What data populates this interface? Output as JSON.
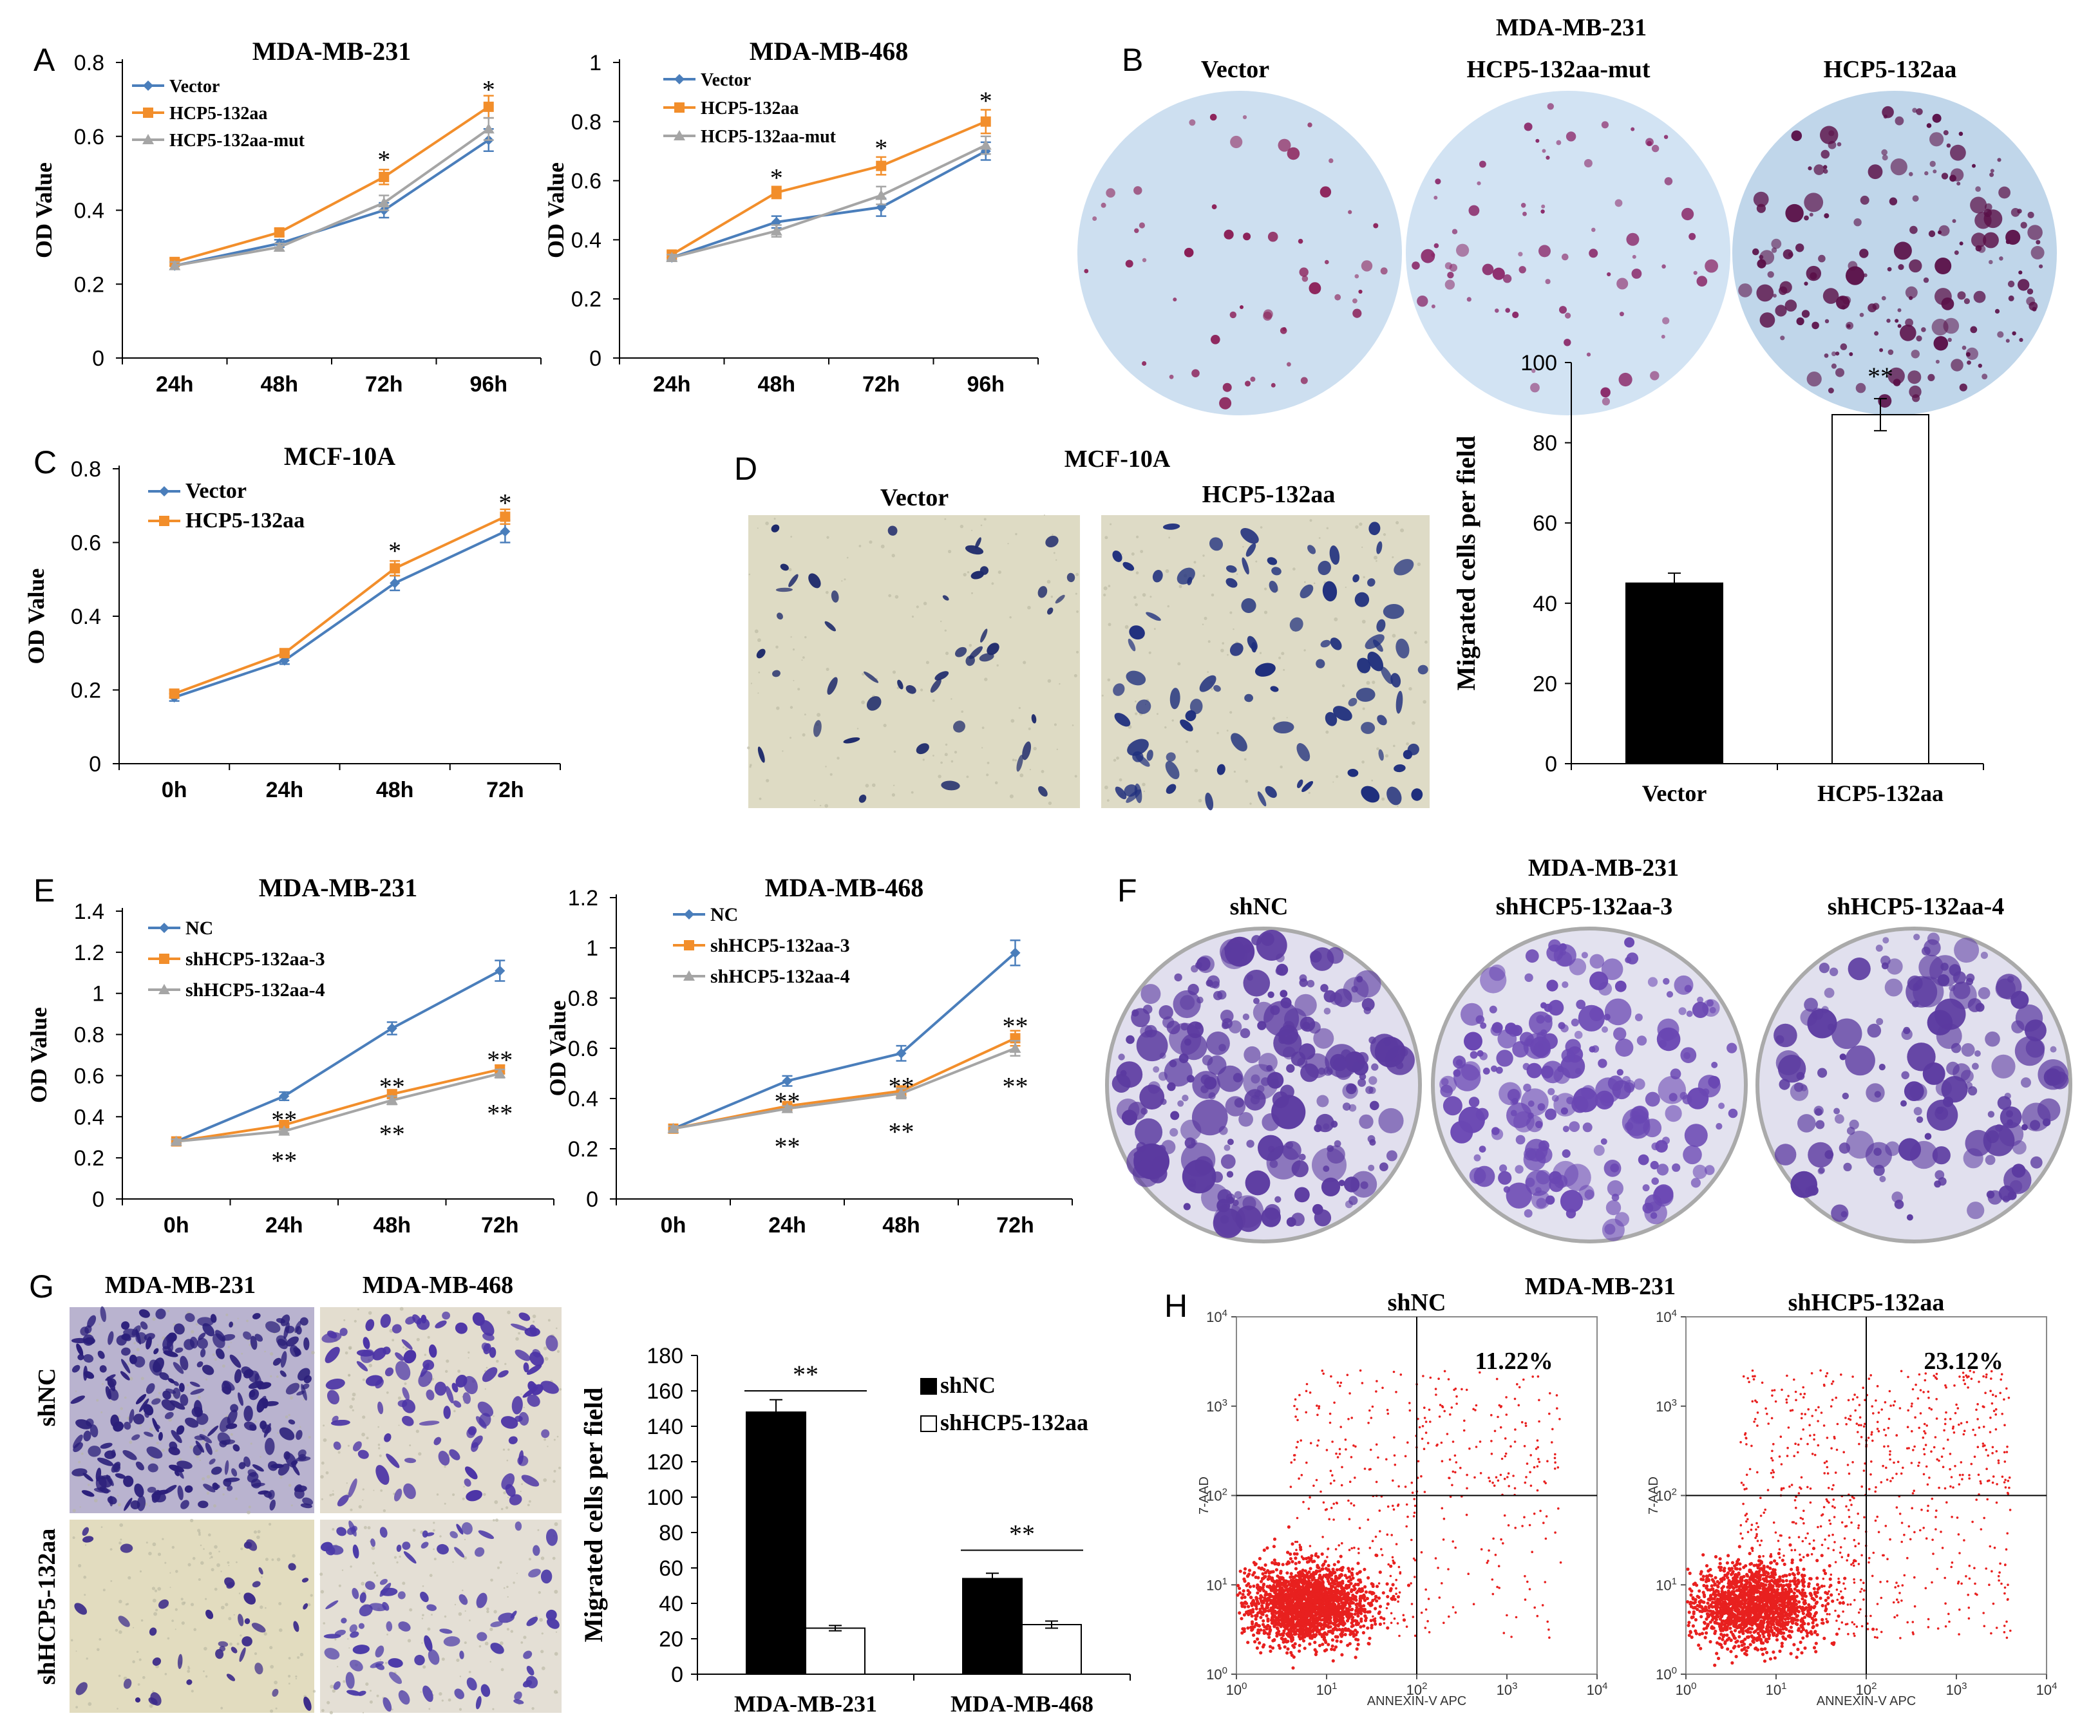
{
  "panel_letters": {
    "a": "A",
    "b": "B",
    "c": "C",
    "d": "D",
    "e": "E",
    "f": "F",
    "g": "G",
    "h": "H"
  },
  "colors": {
    "blue": "#4a7ebb",
    "orange": "#f28e2b",
    "gray": "#a5a5a5",
    "red": "#e8201f",
    "black": "#000000",
    "dish_blue": "#c9dcef",
    "crystal_violet": "#5b3aa0"
  },
  "panel_b": {
    "title": "MDA-MB-231",
    "labels": [
      "Vector",
      "HCP5-132aa-mut",
      "HCP5-132aa"
    ]
  },
  "panel_d_images": {
    "title": "MCF-10A",
    "labels": [
      "Vector",
      "HCP5-132aa"
    ]
  },
  "panel_f": {
    "title": "MDA-MB-231",
    "labels": [
      "shNC",
      "shHCP5-132aa-3",
      "shHCP5-132aa-4"
    ]
  },
  "panel_g_images": {
    "col_labels": [
      "MDA-MB-231",
      "MDA-MB-468"
    ],
    "row_labels": [
      "shNC",
      "shHCP5-132aa"
    ]
  },
  "chart_data": [
    {
      "id": "A1",
      "type": "line",
      "title": "MDA-MB-231",
      "xlabel": "",
      "ylabel": "OD Value",
      "categories": [
        "24h",
        "48h",
        "72h",
        "96h"
      ],
      "ylim": [
        0,
        0.8
      ],
      "yticks": [
        0,
        0.2,
        0.4,
        0.6,
        0.8
      ],
      "ytick_labels": [
        "0",
        "0.2",
        "0.4",
        "0.6",
        "0.8"
      ],
      "series": [
        {
          "name": "Vector",
          "values": [
            0.25,
            0.31,
            0.4,
            0.59
          ],
          "errors": [
            0.01,
            0.01,
            0.02,
            0.03
          ],
          "color": "#4a7ebb",
          "marker": "diamond"
        },
        {
          "name": "HCP5-132aa",
          "values": [
            0.26,
            0.34,
            0.49,
            0.68
          ],
          "errors": [
            0.01,
            0.01,
            0.02,
            0.03
          ],
          "color": "#f28e2b",
          "marker": "square"
        },
        {
          "name": "HCP5-132aa-mut",
          "values": [
            0.25,
            0.3,
            0.42,
            0.62
          ],
          "errors": [
            0.01,
            0.01,
            0.02,
            0.03
          ],
          "color": "#a5a5a5",
          "marker": "triangle"
        }
      ],
      "annotations": [
        {
          "category": "72h",
          "value": 0.545,
          "text": "*"
        },
        {
          "category": "96h",
          "value": 0.735,
          "text": "*"
        }
      ]
    },
    {
      "id": "A2",
      "type": "line",
      "title": "MDA-MB-468",
      "xlabel": "",
      "ylabel": "OD Value",
      "categories": [
        "24h",
        "48h",
        "72h",
        "96h"
      ],
      "ylim": [
        0,
        1
      ],
      "yticks": [
        0,
        0.2,
        0.4,
        0.6,
        0.8,
        1
      ],
      "ytick_labels": [
        "0",
        "0.2",
        "0.4",
        "0.6",
        "0.8",
        "1"
      ],
      "series": [
        {
          "name": "Vector",
          "values": [
            0.34,
            0.46,
            0.51,
            0.7
          ],
          "errors": [
            0.01,
            0.02,
            0.03,
            0.03
          ],
          "color": "#4a7ebb",
          "marker": "diamond"
        },
        {
          "name": "HCP5-132aa",
          "values": [
            0.35,
            0.56,
            0.65,
            0.8
          ],
          "errors": [
            0.01,
            0.02,
            0.03,
            0.04
          ],
          "color": "#f28e2b",
          "marker": "square"
        },
        {
          "name": "HCP5-132aa-mut",
          "values": [
            0.34,
            0.43,
            0.55,
            0.72
          ],
          "errors": [
            0.01,
            0.02,
            0.03,
            0.03
          ],
          "color": "#a5a5a5",
          "marker": "triangle"
        }
      ],
      "annotations": [
        {
          "category": "48h",
          "value": 0.62,
          "text": "*"
        },
        {
          "category": "72h",
          "value": 0.72,
          "text": "*"
        },
        {
          "category": "96h",
          "value": 0.88,
          "text": "*"
        }
      ]
    },
    {
      "id": "C",
      "type": "line",
      "title": "MCF-10A",
      "xlabel": "",
      "ylabel": "OD Value",
      "categories": [
        "0h",
        "24h",
        "48h",
        "72h"
      ],
      "ylim": [
        0,
        0.8
      ],
      "yticks": [
        0,
        0.2,
        0.4,
        0.6,
        0.8
      ],
      "ytick_labels": [
        "0",
        "0.2",
        "0.4",
        "0.6",
        "0.8"
      ],
      "series": [
        {
          "name": "Vector",
          "values": [
            0.18,
            0.28,
            0.49,
            0.63
          ],
          "errors": [
            0.01,
            0.01,
            0.02,
            0.03
          ],
          "color": "#4a7ebb",
          "marker": "diamond"
        },
        {
          "name": "HCP5-132aa",
          "values": [
            0.19,
            0.3,
            0.53,
            0.67
          ],
          "errors": [
            0.01,
            0.01,
            0.02,
            0.02
          ],
          "color": "#f28e2b",
          "marker": "square"
        }
      ],
      "annotations": [
        {
          "category": "48h",
          "value": 0.585,
          "text": "*"
        },
        {
          "category": "72h",
          "value": 0.715,
          "text": "*"
        }
      ]
    },
    {
      "id": "D",
      "type": "bar",
      "title": "",
      "xlabel": "",
      "ylabel": "Migrated cells per field",
      "categories": [
        "Vector",
        "HCP5-132aa"
      ],
      "ylim": [
        0,
        100
      ],
      "yticks": [
        0,
        20,
        40,
        60,
        80,
        100
      ],
      "ytick_labels": [
        "0",
        "20",
        "40",
        "60",
        "80",
        "100"
      ],
      "series": [
        {
          "name": "",
          "values": [
            45,
            87
          ],
          "errors": [
            2.5,
            4
          ],
          "fills": [
            "#000000",
            "#ffffff"
          ]
        }
      ],
      "annotations": [
        {
          "category": "HCP5-132aa",
          "value": 96,
          "text": "**"
        }
      ]
    },
    {
      "id": "E1",
      "type": "line",
      "title": "MDA-MB-231",
      "xlabel": "",
      "ylabel": "OD Value",
      "categories": [
        "0h",
        "24h",
        "48h",
        "72h"
      ],
      "ylim": [
        0,
        1.4
      ],
      "yticks": [
        0,
        0.2,
        0.4,
        0.6,
        0.8,
        1,
        1.2,
        1.4
      ],
      "ytick_labels": [
        "0",
        "0.2",
        "0.4",
        "0.6",
        "0.8",
        "1",
        "1.2",
        "1.4"
      ],
      "series": [
        {
          "name": "NC",
          "values": [
            0.28,
            0.5,
            0.83,
            1.11
          ],
          "errors": [
            0.01,
            0.02,
            0.03,
            0.05
          ],
          "color": "#4a7ebb",
          "marker": "diamond"
        },
        {
          "name": "shHCP5-132aa-3",
          "values": [
            0.28,
            0.36,
            0.51,
            0.63
          ],
          "errors": [
            0.01,
            0.01,
            0.02,
            0.02
          ],
          "color": "#f28e2b",
          "marker": "square"
        },
        {
          "name": "shHCP5-132aa-4",
          "values": [
            0.28,
            0.33,
            0.48,
            0.61
          ],
          "errors": [
            0.01,
            0.01,
            0.02,
            0.02
          ],
          "color": "#a5a5a5",
          "marker": "triangle"
        }
      ],
      "annotations": [
        {
          "category": "24h",
          "value": 0.4,
          "text": "**"
        },
        {
          "category": "24h",
          "value": 0.2,
          "text": "**"
        },
        {
          "category": "48h",
          "value": 0.56,
          "text": "**"
        },
        {
          "category": "48h",
          "value": 0.33,
          "text": "**"
        },
        {
          "category": "72h",
          "value": 0.69,
          "text": "**"
        },
        {
          "category": "72h",
          "value": 0.43,
          "text": "**"
        }
      ]
    },
    {
      "id": "E2",
      "type": "line",
      "title": "MDA-MB-468",
      "xlabel": "",
      "ylabel": "OD Value",
      "categories": [
        "0h",
        "24h",
        "48h",
        "72h"
      ],
      "ylim": [
        0,
        1.2
      ],
      "yticks": [
        0,
        0.2,
        0.4,
        0.6,
        0.8,
        1,
        1.2
      ],
      "ytick_labels": [
        "0",
        "0.2",
        "0.4",
        "0.6",
        "0.8",
        "1",
        "1.2"
      ],
      "series": [
        {
          "name": "NC",
          "values": [
            0.28,
            0.47,
            0.58,
            0.98
          ],
          "errors": [
            0.01,
            0.02,
            0.03,
            0.05
          ],
          "color": "#4a7ebb",
          "marker": "diamond"
        },
        {
          "name": "shHCP5-132aa-3",
          "values": [
            0.28,
            0.37,
            0.43,
            0.64
          ],
          "errors": [
            0.01,
            0.01,
            0.02,
            0.03
          ],
          "color": "#f28e2b",
          "marker": "square"
        },
        {
          "name": "shHCP5-132aa-4",
          "values": [
            0.28,
            0.36,
            0.42,
            0.6
          ],
          "errors": [
            0.01,
            0.01,
            0.02,
            0.03
          ],
          "color": "#a5a5a5",
          "marker": "triangle"
        }
      ],
      "annotations": [
        {
          "category": "24h",
          "value": 0.4,
          "text": "**"
        },
        {
          "category": "24h",
          "value": 0.22,
          "text": "**"
        },
        {
          "category": "48h",
          "value": 0.46,
          "text": "**"
        },
        {
          "category": "48h",
          "value": 0.28,
          "text": "**"
        },
        {
          "category": "72h",
          "value": 0.7,
          "text": "**"
        },
        {
          "category": "72h",
          "value": 0.46,
          "text": "**"
        }
      ]
    },
    {
      "id": "G",
      "type": "bar",
      "title": "",
      "xlabel": "",
      "ylabel": "Migrated cells per field",
      "categories": [
        "MDA-MB-231",
        "MDA-MB-468"
      ],
      "ylim": [
        0,
        180
      ],
      "yticks": [
        0,
        20,
        40,
        60,
        80,
        100,
        120,
        140,
        160,
        180
      ],
      "ytick_labels": [
        "0",
        "20",
        "40",
        "60",
        "80",
        "100",
        "120",
        "140",
        "160",
        "180"
      ],
      "series": [
        {
          "name": "shNC",
          "values": [
            148,
            54
          ],
          "errors": [
            7,
            3
          ],
          "fill": "#000000"
        },
        {
          "name": "shHCP5-132aa",
          "values": [
            26,
            28
          ],
          "errors": [
            1.5,
            2
          ],
          "fill": "#ffffff"
        }
      ],
      "annotations": [
        {
          "category": "MDA-MB-231",
          "value": 160,
          "text": "**"
        },
        {
          "category": "MDA-MB-468",
          "value": 70,
          "text": "**"
        }
      ]
    },
    {
      "id": "H",
      "type": "scatter",
      "title": "MDA-MB-231",
      "xlabel": "ANNEXIN-V APC",
      "ylabel": "7-AAD",
      "xscale": "log",
      "yscale": "log",
      "xlim": [
        1,
        10000
      ],
      "ylim": [
        1,
        10000
      ],
      "tick_exponents": [
        0,
        1,
        2,
        3,
        4
      ],
      "quadrant_lines": {
        "x": 100,
        "y": 100
      },
      "plots": [
        {
          "name": "shNC",
          "upper_right_percent": "11.22%"
        },
        {
          "name": "shHCP5-132aa",
          "upper_right_percent": "23.12%"
        }
      ]
    }
  ]
}
